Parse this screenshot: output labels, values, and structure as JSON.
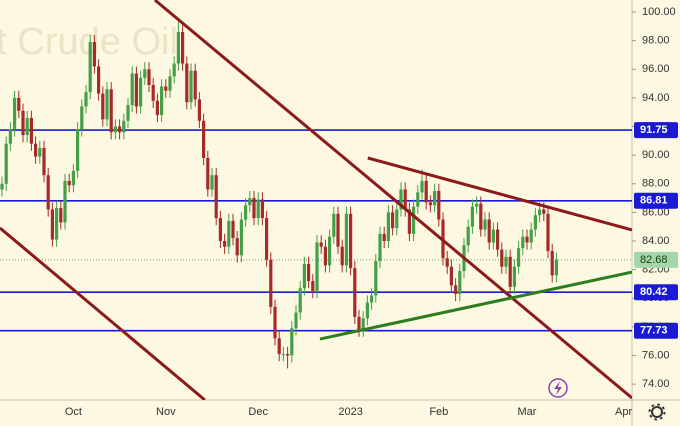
{
  "chart_data": {
    "type": "candlestick",
    "title": "Brent Crude Oil",
    "categories": [
      null,
      null,
      null,
      null,
      null,
      null,
      null,
      null,
      null,
      null,
      null,
      null,
      null,
      null,
      null,
      null,
      null,
      "Oct",
      null,
      null,
      null,
      null,
      null,
      null,
      null,
      null,
      null,
      null,
      null,
      null,
      null,
      null,
      null,
      null,
      null,
      null,
      null,
      null,
      null,
      "Nov",
      null,
      null,
      null,
      null,
      null,
      null,
      null,
      null,
      null,
      null,
      null,
      null,
      null,
      null,
      null,
      null,
      null,
      null,
      null,
      null,
      null,
      "Dec",
      null,
      null,
      null,
      null,
      null,
      null,
      null,
      null,
      null,
      null,
      null,
      null,
      null,
      null,
      null,
      null,
      null,
      null,
      null,
      null,
      null,
      "2023",
      null,
      null,
      null,
      null,
      null,
      null,
      null,
      null,
      null,
      null,
      null,
      null,
      null,
      null,
      null,
      null,
      null,
      null,
      null,
      null,
      "Feb",
      null,
      null,
      null,
      null,
      null,
      null,
      null,
      null,
      null,
      null,
      null,
      null,
      null,
      null,
      null,
      null,
      null,
      null,
      null,
      null,
      "Mar",
      null,
      null,
      null,
      null,
      null,
      null,
      null,
      null,
      null,
      null,
      null,
      null,
      null,
      null,
      null,
      null,
      null,
      null,
      null,
      null,
      null,
      null,
      "Apr",
      null
    ],
    "open": [
      87.6,
      88.0,
      90.8,
      91.8,
      94.0,
      93.1,
      91.4,
      92.6,
      90.8,
      89.9,
      90.5,
      88.6,
      86.2,
      84.1,
      86.3,
      85.3,
      88.2,
      87.9,
      88.9,
      91.8,
      93.4,
      94.4,
      97.9,
      96.2,
      94.3,
      92.5,
      94.6,
      91.6,
      92.0,
      91.6,
      92.4,
      93.5,
      95.7,
      93.4,
      95.4,
      96.0,
      94.9,
      93.8,
      92.8,
      94.8,
      94.5,
      95.5,
      96.4,
      98.6,
      96.4,
      93.7,
      95.9,
      93.9,
      92.4,
      89.8,
      87.6,
      88.6,
      85.6,
      84.0,
      83.6,
      85.4,
      84.2,
      83.0,
      85.5,
      86.5,
      87.0,
      85.6,
      86.9,
      85.6,
      82.7,
      79.4,
      77.2,
      76.1,
      76.1,
      76.0,
      77.9,
      79.0,
      80.7,
      82.4,
      81.2,
      80.5,
      83.9,
      83.6,
      82.3,
      84.3,
      85.9,
      83.6,
      82.3,
      85.9,
      82.1,
      78.7,
      77.8,
      78.6,
      79.7,
      80.2,
      82.6,
      84.5,
      84.0,
      86.0,
      84.9,
      86.2,
      87.6,
      86.2,
      84.5,
      86.4,
      87.4,
      88.2,
      86.7,
      86.5,
      87.5,
      85.5,
      82.8,
      82.2,
      80.9,
      80.3,
      81.9,
      83.7,
      85.0,
      86.4,
      86.6,
      84.8,
      85.5,
      83.9,
      84.8,
      83.4,
      82.2,
      82.9,
      80.8,
      82.2,
      83.5,
      84.3,
      83.9,
      84.8,
      85.8,
      86.2,
      85.9,
      83.3,
      81.6,
      null,
      null,
      null,
      null,
      null,
      null,
      null,
      null,
      null,
      null,
      null,
      null,
      null,
      null,
      null,
      null,
      null
    ],
    "high": [
      88.5,
      91.3,
      92.3,
      94.5,
      94.5,
      93.6,
      93.1,
      93.1,
      91.3,
      91.0,
      91.0,
      89.1,
      86.7,
      86.8,
      86.8,
      88.7,
      88.7,
      89.4,
      92.3,
      93.9,
      94.9,
      98.4,
      98.4,
      96.7,
      94.8,
      95.1,
      95.1,
      92.5,
      92.5,
      92.9,
      94.0,
      96.2,
      96.2,
      95.9,
      96.5,
      96.5,
      95.4,
      94.3,
      95.3,
      95.3,
      96.0,
      96.9,
      99.5,
      99.1,
      96.9,
      96.4,
      96.4,
      94.4,
      92.9,
      90.3,
      89.1,
      89.1,
      86.1,
      84.5,
      85.9,
      85.9,
      84.7,
      86.0,
      87.0,
      87.5,
      87.5,
      87.4,
      87.4,
      86.1,
      83.2,
      79.9,
      77.7,
      76.6,
      76.6,
      78.4,
      79.5,
      81.2,
      82.9,
      82.9,
      81.7,
      84.4,
      84.4,
      84.1,
      84.8,
      86.4,
      86.4,
      84.1,
      86.4,
      86.4,
      82.6,
      79.2,
      79.1,
      80.2,
      80.7,
      83.1,
      85.0,
      85.0,
      86.5,
      86.5,
      86.7,
      88.1,
      88.1,
      86.7,
      86.9,
      87.9,
      89.0,
      88.7,
      87.2,
      88.0,
      88.0,
      86.0,
      83.3,
      82.7,
      81.4,
      82.4,
      84.2,
      85.5,
      86.9,
      87.1,
      87.1,
      86.0,
      86.0,
      85.3,
      85.3,
      83.9,
      83.4,
      83.4,
      82.7,
      84.0,
      84.8,
      84.8,
      85.3,
      86.3,
      86.7,
      86.7,
      86.4,
      83.8,
      83.2,
      null,
      null,
      null,
      null,
      null,
      null,
      null,
      null,
      null,
      null,
      null,
      null,
      null,
      null,
      null,
      null,
      null
    ],
    "low": [
      87.1,
      87.5,
      90.3,
      91.3,
      92.6,
      90.9,
      90.9,
      90.3,
      89.4,
      89.4,
      88.1,
      85.7,
      83.6,
      83.6,
      84.8,
      84.8,
      87.4,
      87.4,
      88.4,
      91.3,
      92.9,
      93.9,
      95.7,
      93.8,
      92.0,
      92.0,
      91.1,
      91.1,
      91.1,
      91.1,
      91.9,
      93.0,
      92.9,
      92.9,
      94.9,
      94.4,
      93.3,
      92.3,
      92.3,
      94.0,
      94.0,
      95.0,
      95.9,
      95.9,
      93.2,
      93.2,
      93.4,
      91.9,
      89.3,
      87.1,
      87.1,
      85.1,
      83.5,
      83.1,
      83.1,
      83.7,
      82.5,
      82.5,
      85.0,
      86.0,
      85.1,
      85.1,
      85.1,
      82.2,
      78.9,
      76.7,
      75.6,
      75.6,
      75.1,
      75.5,
      77.4,
      78.5,
      80.2,
      80.7,
      80.0,
      80.0,
      83.1,
      81.8,
      81.8,
      83.8,
      83.1,
      81.8,
      81.8,
      81.6,
      78.2,
      77.3,
      77.3,
      78.1,
      79.2,
      79.7,
      82.1,
      83.5,
      83.5,
      84.4,
      84.4,
      85.7,
      85.7,
      84.0,
      84.0,
      85.9,
      86.9,
      86.2,
      86.0,
      86.0,
      85.0,
      82.3,
      81.7,
      80.4,
      79.8,
      79.8,
      81.4,
      83.2,
      84.5,
      85.9,
      84.3,
      84.3,
      83.4,
      83.4,
      82.9,
      81.7,
      81.7,
      80.3,
      80.3,
      81.7,
      83.0,
      83.4,
      83.4,
      84.3,
      85.3,
      85.4,
      82.8,
      81.1,
      81.1,
      null,
      null,
      null,
      null,
      null,
      null,
      null,
      null,
      null,
      null,
      null,
      null,
      null,
      null,
      null,
      null,
      null
    ],
    "close": [
      88.0,
      90.8,
      91.8,
      94.0,
      93.1,
      91.4,
      92.6,
      90.8,
      89.9,
      90.5,
      88.6,
      86.2,
      84.1,
      86.3,
      85.3,
      88.2,
      87.9,
      88.9,
      91.8,
      93.4,
      94.4,
      97.9,
      96.2,
      94.3,
      92.5,
      94.6,
      91.6,
      92.0,
      91.6,
      92.4,
      93.5,
      95.7,
      93.4,
      95.4,
      96.0,
      94.9,
      93.8,
      92.8,
      94.8,
      94.5,
      95.5,
      96.4,
      98.6,
      96.4,
      93.7,
      95.9,
      93.9,
      92.4,
      89.8,
      87.6,
      88.6,
      85.6,
      84.0,
      83.6,
      85.4,
      84.2,
      83.0,
      85.5,
      86.5,
      87.0,
      85.6,
      86.9,
      85.6,
      82.7,
      79.4,
      77.2,
      76.1,
      76.1,
      76.0,
      77.9,
      79.0,
      80.7,
      82.4,
      81.2,
      80.5,
      83.9,
      83.6,
      82.3,
      84.3,
      85.9,
      83.6,
      82.3,
      85.9,
      82.1,
      78.7,
      77.8,
      78.6,
      79.7,
      80.2,
      82.6,
      84.5,
      84.0,
      86.0,
      84.9,
      86.2,
      87.6,
      86.2,
      84.5,
      86.4,
      87.4,
      88.2,
      86.7,
      86.5,
      87.5,
      85.5,
      82.8,
      82.2,
      80.9,
      80.3,
      81.9,
      83.7,
      85.0,
      86.4,
      86.6,
      84.8,
      85.5,
      83.9,
      84.8,
      83.4,
      82.2,
      82.9,
      80.8,
      82.2,
      83.5,
      84.3,
      83.9,
      84.8,
      85.8,
      86.2,
      85.9,
      83.3,
      81.6,
      82.7,
      null,
      null,
      null,
      null,
      null,
      null,
      null,
      null,
      null,
      null,
      null,
      null,
      null,
      null,
      null,
      null,
      null
    ],
    "up_color": "#43a047",
    "down_color": "#a52a2a",
    "ylim": [
      72.89,
      100.84
    ],
    "yticks": [
      {
        "value": 74,
        "label": "74.00"
      },
      {
        "value": 76,
        "label": "76.00"
      },
      {
        "value": 78,
        "label": "78.00"
      },
      {
        "value": 80,
        "label": "80.00"
      },
      {
        "value": 82,
        "label": "82.00"
      },
      {
        "value": 84,
        "label": "84.00"
      },
      {
        "value": 86,
        "label": "86.00"
      },
      {
        "value": 88,
        "label": "88.00"
      },
      {
        "value": 90,
        "label": "90.00"
      },
      {
        "value": 92,
        "label": "92.00"
      },
      {
        "value": 94,
        "label": "94.00"
      },
      {
        "value": 96,
        "label": "96.00"
      },
      {
        "value": 98,
        "label": "98.00"
      },
      {
        "value": 100,
        "label": "100.00"
      }
    ],
    "levels": [
      91.75,
      86.81,
      80.42,
      77.73
    ],
    "level_color": "#1a1ad6",
    "last_price": 82.68,
    "last_price_color": "#a5d6a7",
    "trendlines": [
      {
        "color": "#8b1a1a",
        "points": [
          [
            36.4,
            100.84
          ],
          [
            150,
            73.03
          ]
        ]
      },
      {
        "color": "#8b1a1a",
        "points": [
          [
            -0.48,
            84.91
          ],
          [
            48.3,
            72.89
          ]
        ]
      },
      {
        "color": "#8b1a1a",
        "points": [
          [
            87.1,
            89.8
          ],
          [
            150,
            84.77
          ]
        ]
      },
      {
        "color": "#2e7d1e",
        "points": [
          [
            75.7,
            77.15
          ],
          [
            150,
            81.83
          ]
        ]
      }
    ]
  }
}
